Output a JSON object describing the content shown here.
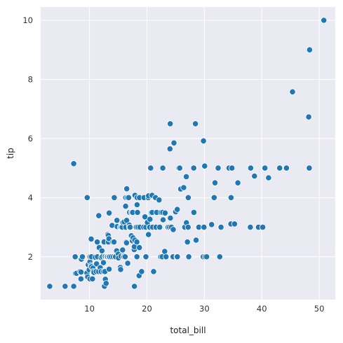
{
  "chart_data": {
    "type": "scatter",
    "title": "",
    "xlabel": "total_bill",
    "ylabel": "tip",
    "xlim": [
      1.5,
      52.8
    ],
    "ylim": [
      0.55,
      10.45
    ],
    "xticks": [
      10,
      20,
      30,
      40,
      50
    ],
    "yticks": [
      2,
      4,
      6,
      8,
      10
    ],
    "grid": true,
    "colors": {
      "background": "#eaeaf2",
      "point": "#1f77b4",
      "point_edge": "#ffffff",
      "grid": "#ffffff"
    },
    "series": [
      {
        "x": [
          3.07,
          5.75,
          7.25,
          7.25,
          7.51,
          7.56,
          7.74,
          8.35,
          8.51,
          8.52,
          8.58,
          8.77,
          9.55,
          9.6,
          9.68,
          9.78,
          9.94,
          10.07,
          10.07,
          10.09,
          10.27,
          10.29,
          10.33,
          10.33,
          10.34,
          10.34,
          10.51,
          10.59,
          10.63,
          10.65,
          10.77,
          11.02,
          11.17,
          11.24,
          11.35,
          11.38,
          11.59,
          11.61,
          11.69,
          11.87,
          12.02,
          12.03,
          12.16,
          12.26,
          12.43,
          12.46,
          12.48,
          12.54,
          12.6,
          12.66,
          12.69,
          12.74,
          12.76,
          12.9,
          13.0,
          13.03,
          13.13,
          13.16,
          13.27,
          13.28,
          13.37,
          13.39,
          13.42,
          13.42,
          13.51,
          13.81,
          13.94,
          14.07,
          14.15,
          14.26,
          14.31,
          14.48,
          14.52,
          14.73,
          14.78,
          14.83,
          15.01,
          15.04,
          15.36,
          15.38,
          15.42,
          15.48,
          15.53,
          15.69,
          15.77,
          15.81,
          15.95,
          15.98,
          16.0,
          16.04,
          16.21,
          16.27,
          16.29,
          16.31,
          16.32,
          16.4,
          16.45,
          16.47,
          16.49,
          16.58,
          16.66,
          16.82,
          16.93,
          16.97,
          16.99,
          17.07,
          17.29,
          17.31,
          17.46,
          17.47,
          17.51,
          17.59,
          17.78,
          17.81,
          17.82,
          17.89,
          17.92,
          18.04,
          18.15,
          18.24,
          18.26,
          18.28,
          18.29,
          18.35,
          18.43,
          18.64,
          18.69,
          18.71,
          18.78,
          19.08,
          19.44,
          19.49,
          19.65,
          19.77,
          19.81,
          19.82,
          20.08,
          20.23,
          20.27,
          20.29,
          20.45,
          20.49,
          20.53,
          20.65,
          20.69,
          20.76,
          20.9,
          20.92,
          21.01,
          21.16,
          21.5,
          21.58,
          21.7,
          22.12,
          22.23,
          22.42,
          22.49,
          22.67,
          22.75,
          22.76,
          22.82,
          23.1,
          23.17,
          23.33,
          23.68,
          23.95,
          24.01,
          24.06,
          24.08,
          24.27,
          24.52,
          24.55,
          24.59,
          24.71,
          25.0,
          25.21,
          25.28,
          25.29,
          25.56,
          25.71,
          25.89,
          26.41,
          26.59,
          26.86,
          26.88,
          27.05,
          27.18,
          27.2,
          27.28,
          28.15,
          28.17,
          28.44,
          28.55,
          28.97,
          29.03,
          29.8,
          29.85,
          29.93,
          30.06,
          30.14,
          30.4,
          31.27,
          31.71,
          31.85,
          32.4,
          32.68,
          32.83,
          32.9,
          34.3,
          34.63,
          34.65,
          34.81,
          35.26,
          35.83,
          38.01,
          38.07,
          38.73,
          39.42,
          40.17,
          40.55,
          41.19,
          43.11,
          44.3,
          45.35,
          48.17,
          48.27,
          48.33,
          50.81
        ],
        "y": [
          1.0,
          1.0,
          1.0,
          5.15,
          2.0,
          1.44,
          1.44,
          1.5,
          1.25,
          1.48,
          1.92,
          2.0,
          1.45,
          4.0,
          1.32,
          1.73,
          1.56,
          1.25,
          1.83,
          2.0,
          1.71,
          2.6,
          2.0,
          1.67,
          2.0,
          1.66,
          1.25,
          1.61,
          1.5,
          1.5,
          1.47,
          1.98,
          1.5,
          1.76,
          2.5,
          2.0,
          1.5,
          3.39,
          2.31,
          1.63,
          1.97,
          1.5,
          2.2,
          2.0,
          1.8,
          1.5,
          2.52,
          2.5,
          1.0,
          2.0,
          1.5,
          2.01,
          1.24,
          1.1,
          2.0,
          2.0,
          2.0,
          2.75,
          2.5,
          2.72,
          2.0,
          2.61,
          3.48,
          1.58,
          2.0,
          2.0,
          3.06,
          2.5,
          2.0,
          2.5,
          4.0,
          2.0,
          2.0,
          2.2,
          3.23,
          3.02,
          2.09,
          1.96,
          1.64,
          3.0,
          1.57,
          2.02,
          3.0,
          3.0,
          2.23,
          3.16,
          2.0,
          2.03,
          2.0,
          3.18,
          2.0,
          2.5,
          3.71,
          4.0,
          3.0,
          2.5,
          2.47,
          3.23,
          4.3,
          4.0,
          1.78,
          4.0,
          3.07,
          3.0,
          3.5,
          3.0,
          2.71,
          3.5,
          2.54,
          3.5,
          3.5,
          2.64,
          2.24,
          2.34,
          1.0,
          2.56,
          4.08,
          3.0,
          3.0,
          2.5,
          2.0,
          3.76,
          4.0,
          3.5,
          3.0,
          1.36,
          2.31,
          4.0,
          3.0,
          1.5,
          3.0,
          4.0,
          3.35,
          2.0,
          3.0,
          2.0,
          3.16,
          4.0,
          2.75,
          4.06,
          3.0,
          3.0,
          3.27,
          5.0,
          3.48,
          3.5,
          4.08,
          3.5,
          3.0,
          1.5,
          4.0,
          3.0,
          3.5,
          3.92,
          3.0,
          2.0,
          3.5,
          2.0,
          3.5,
          5.0,
          3.25,
          2.18,
          3.48,
          2.0,
          3.0,
          3.0,
          5.65,
          6.5,
          3.31,
          3.0,
          2.0,
          2.0,
          2.92,
          5.85,
          3.52,
          2.0,
          3.6,
          2.0,
          5.0,
          5.0,
          4.29,
          4.34,
          3.0,
          4.71,
          3.15,
          2.5,
          3.0,
          4.0,
          2.0,
          5.0,
          3.5,
          6.5,
          2.56,
          3.0,
          3.0,
          2.0,
          5.92,
          3.0,
          5.07,
          2.0,
          2.0,
          3.09,
          4.0,
          4.5,
          5.0,
          2.0,
          3.0,
          3.0,
          5.0,
          3.11,
          4.0,
          5.0,
          3.11,
          4.5,
          3.0,
          5.0,
          4.73,
          3.0,
          3.0,
          5.0,
          4.67,
          5.0,
          5.0,
          7.58,
          6.73,
          5.0,
          9.0,
          10.0
        ]
      }
    ]
  }
}
